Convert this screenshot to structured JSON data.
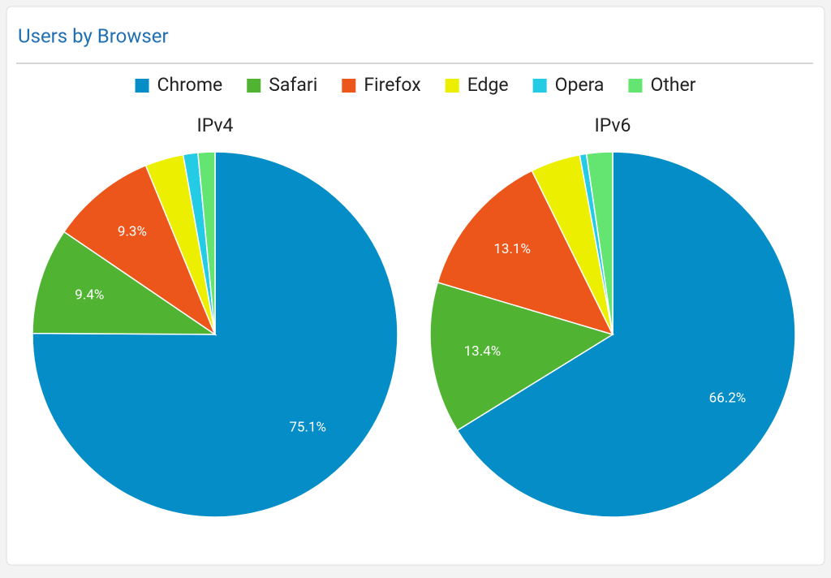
{
  "panel": {
    "title": "Users by Browser"
  },
  "chart_data": [
    {
      "type": "pie",
      "title": "IPv4",
      "categories": [
        "Chrome",
        "Safari",
        "Firefox",
        "Edge",
        "Opera",
        "Other"
      ],
      "values": [
        75.1,
        9.4,
        9.3,
        3.4,
        1.3,
        1.5
      ],
      "value_labels": [
        "75.1%",
        "9.4%",
        "9.3%",
        null,
        null,
        null
      ],
      "colors": [
        "#058dc7",
        "#50b432",
        "#ed561b",
        "#edef00",
        "#24cbe5",
        "#64e572"
      ]
    },
    {
      "type": "pie",
      "title": "IPv6",
      "categories": [
        "Chrome",
        "Safari",
        "Firefox",
        "Edge",
        "Opera",
        "Other"
      ],
      "values": [
        66.2,
        13.4,
        13.1,
        4.4,
        0.6,
        2.3
      ],
      "value_labels": [
        "66.2%",
        "13.4%",
        "13.1%",
        null,
        null,
        null
      ],
      "colors": [
        "#058dc7",
        "#50b432",
        "#ed561b",
        "#edef00",
        "#24cbe5",
        "#64e572"
      ]
    }
  ]
}
